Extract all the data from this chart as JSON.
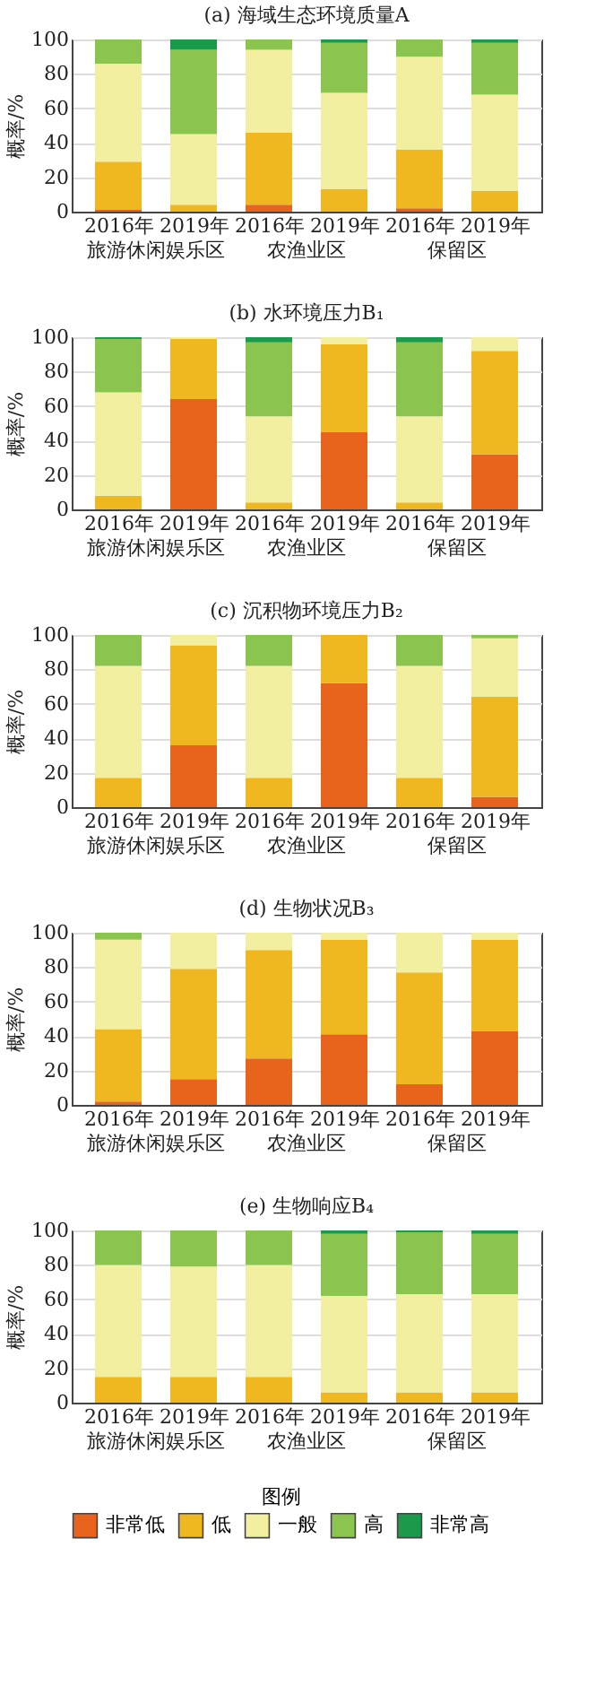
{
  "chart_data": [
    {
      "type": "bar",
      "stacked": true,
      "title": "(a) 海域生态环境质量A",
      "ylabel": "概率/%",
      "categories": [
        "2016年",
        "2019年",
        "2016年",
        "2019年",
        "2016年",
        "2019年"
      ],
      "annotations": [
        "旅游休闲娱乐区",
        "农渔业区",
        "保留区"
      ],
      "ylim": [
        0,
        100
      ],
      "yticks": [
        0,
        20,
        40,
        60,
        80,
        100
      ],
      "grid": "y",
      "series": [
        {
          "color": "#e8641c",
          "values": [
            1,
            0,
            4,
            0,
            2,
            0
          ]
        },
        {
          "color": "#f0b820",
          "values": [
            28,
            4,
            42,
            13,
            34,
            12
          ]
        },
        {
          "color": "#f2f0a0",
          "values": [
            57,
            41,
            48,
            56,
            54,
            56
          ]
        },
        {
          "color": "#8cc450",
          "values": [
            14,
            49,
            6,
            29,
            10,
            30
          ]
        },
        {
          "color": "#1a9a4a",
          "values": [
            0,
            6,
            0,
            2,
            0,
            2
          ]
        }
      ]
    },
    {
      "type": "bar",
      "stacked": true,
      "title": "(b) 水环境压力B₁",
      "ylabel": "概率/%",
      "categories": [
        "2016年",
        "2019年",
        "2016年",
        "2019年",
        "2016年",
        "2019年"
      ],
      "annotations": [
        "旅游休闲娱乐区",
        "农渔业区",
        "保留区"
      ],
      "ylim": [
        0,
        100
      ],
      "yticks": [
        0,
        20,
        40,
        60,
        80,
        100
      ],
      "grid": "y",
      "series": [
        {
          "color": "#e8641c",
          "values": [
            0,
            64,
            0,
            45,
            0,
            32
          ]
        },
        {
          "color": "#f0b820",
          "values": [
            8,
            35,
            4,
            51,
            4,
            60
          ]
        },
        {
          "color": "#f2f0a0",
          "values": [
            60,
            1,
            50,
            4,
            50,
            8
          ]
        },
        {
          "color": "#8cc450",
          "values": [
            31,
            0,
            43,
            0,
            43,
            0
          ]
        },
        {
          "color": "#1a9a4a",
          "values": [
            1,
            0,
            3,
            0,
            3,
            0
          ]
        }
      ]
    },
    {
      "type": "bar",
      "stacked": true,
      "title": "(c) 沉积物环境压力B₂",
      "ylabel": "概率/%",
      "categories": [
        "2016年",
        "2019年",
        "2016年",
        "2019年",
        "2016年",
        "2019年"
      ],
      "annotations": [
        "旅游休闲娱乐区",
        "农渔业区",
        "保留区"
      ],
      "ylim": [
        0,
        100
      ],
      "yticks": [
        0,
        20,
        40,
        60,
        80,
        100
      ],
      "grid": "y",
      "series": [
        {
          "color": "#e8641c",
          "values": [
            0,
            36,
            0,
            72,
            0,
            6
          ]
        },
        {
          "color": "#f0b820",
          "values": [
            17,
            58,
            17,
            28,
            17,
            58
          ]
        },
        {
          "color": "#f2f0a0",
          "values": [
            65,
            6,
            65,
            0,
            65,
            34
          ]
        },
        {
          "color": "#8cc450",
          "values": [
            18,
            0,
            18,
            0,
            18,
            2
          ]
        },
        {
          "color": "#1a9a4a",
          "values": [
            0,
            0,
            0,
            0,
            0,
            0
          ]
        }
      ]
    },
    {
      "type": "bar",
      "stacked": true,
      "title": "(d) 生物状况B₃",
      "ylabel": "概率/%",
      "categories": [
        "2016年",
        "2019年",
        "2016年",
        "2019年",
        "2016年",
        "2019年"
      ],
      "annotations": [
        "旅游休闲娱乐区",
        "农渔业区",
        "保留区"
      ],
      "ylim": [
        0,
        100
      ],
      "yticks": [
        0,
        20,
        40,
        60,
        80,
        100
      ],
      "grid": "y",
      "series": [
        {
          "color": "#e8641c",
          "values": [
            2,
            15,
            27,
            41,
            12,
            43
          ]
        },
        {
          "color": "#f0b820",
          "values": [
            42,
            64,
            63,
            55,
            65,
            53
          ]
        },
        {
          "color": "#f2f0a0",
          "values": [
            52,
            21,
            10,
            4,
            23,
            4
          ]
        },
        {
          "color": "#8cc450",
          "values": [
            4,
            0,
            0,
            0,
            0,
            0
          ]
        },
        {
          "color": "#1a9a4a",
          "values": [
            0,
            0,
            0,
            0,
            0,
            0
          ]
        }
      ]
    },
    {
      "type": "bar",
      "stacked": true,
      "title": "(e) 生物响应B₄",
      "ylabel": "概率/%",
      "categories": [
        "2016年",
        "2019年",
        "2016年",
        "2019年",
        "2016年",
        "2019年"
      ],
      "annotations": [
        "旅游休闲娱乐区",
        "农渔业区",
        "保留区"
      ],
      "ylim": [
        0,
        100
      ],
      "yticks": [
        0,
        20,
        40,
        60,
        80,
        100
      ],
      "grid": "y",
      "legend": "bottom",
      "legend_title": "图例",
      "series": [
        {
          "name": "非常低",
          "color": "#e8641c",
          "values": [
            0,
            0,
            0,
            0,
            0,
            0
          ]
        },
        {
          "name": "低",
          "color": "#f0b820",
          "values": [
            15,
            15,
            15,
            6,
            6,
            6
          ]
        },
        {
          "name": "一般",
          "color": "#f2f0a0",
          "values": [
            65,
            64,
            65,
            56,
            57,
            57
          ]
        },
        {
          "name": "高",
          "color": "#8cc450",
          "values": [
            20,
            21,
            20,
            36,
            36,
            35
          ]
        },
        {
          "name": "非常高",
          "color": "#1a9a4a",
          "values": [
            0,
            0,
            0,
            2,
            1,
            2
          ]
        }
      ]
    }
  ]
}
